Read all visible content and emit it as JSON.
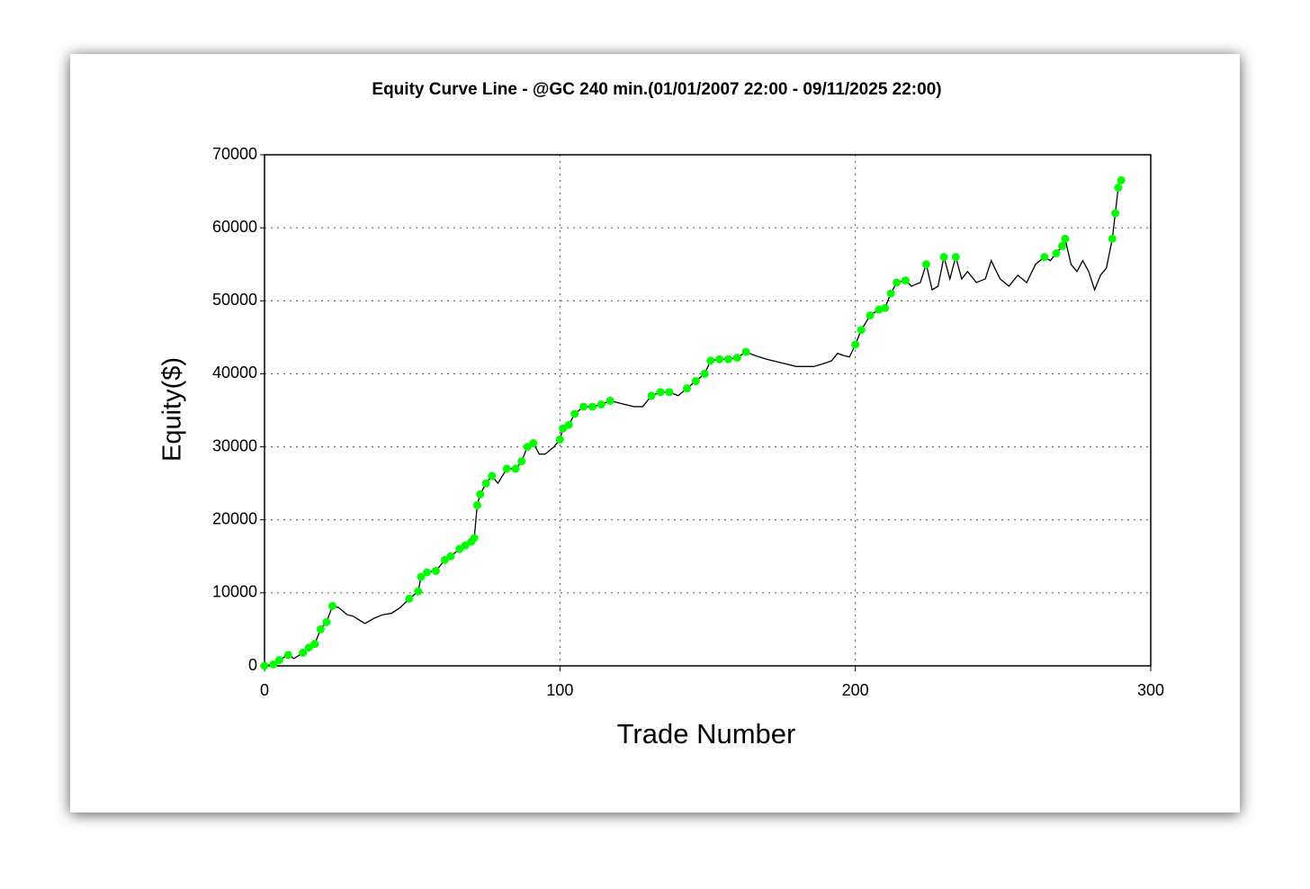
{
  "chart_data": {
    "type": "line",
    "title": "Equity Curve Line - @GC 240 min.(01/01/2007 22:00 - 09/11/2025 22:00)",
    "x_label": "Trade Number",
    "y_label": "Equity($)",
    "xlim": [
      0,
      300
    ],
    "xticks": [
      0,
      100,
      200,
      300
    ],
    "ylim": [
      0,
      70000
    ],
    "yticks": [
      0,
      10000,
      20000,
      30000,
      40000,
      50000,
      60000,
      70000
    ],
    "grid": true,
    "highlight_color": "#00ff00",
    "series": [
      {
        "color": "#000000",
        "x": [
          0,
          3,
          5,
          8,
          10,
          13,
          15,
          17,
          19,
          21,
          23,
          25,
          28,
          30,
          34,
          37,
          40,
          43,
          46,
          49,
          52,
          53,
          55,
          58,
          61,
          63,
          66,
          68,
          70,
          71,
          72,
          73,
          75,
          77,
          79,
          82,
          85,
          87,
          89,
          91,
          93,
          95,
          98,
          100,
          101,
          103,
          105,
          108,
          111,
          114,
          117,
          120,
          125,
          128,
          131,
          134,
          137,
          140,
          143,
          146,
          149,
          151,
          154,
          157,
          160,
          163,
          166,
          170,
          175,
          180,
          186,
          190,
          192,
          194,
          196,
          198,
          200,
          202,
          205,
          208,
          210,
          212,
          214,
          217,
          219,
          222,
          224,
          226,
          228,
          230,
          232,
          234,
          236,
          238,
          241,
          244,
          246,
          249,
          252,
          255,
          258,
          261,
          264,
          266,
          268,
          270,
          271,
          273,
          275,
          277,
          279,
          281,
          283,
          285,
          287,
          288,
          289,
          290
        ],
        "values": [
          0,
          200,
          800,
          1500,
          1000,
          1800,
          2500,
          3000,
          5000,
          6000,
          8200,
          8000,
          7000,
          6800,
          5800,
          6500,
          7000,
          7200,
          8000,
          9200,
          10200,
          12200,
          12800,
          13000,
          14500,
          15000,
          16000,
          16500,
          17000,
          17500,
          22000,
          23500,
          25000,
          26000,
          25000,
          27000,
          27000,
          28000,
          30000,
          30500,
          29000,
          29000,
          30000,
          31000,
          32500,
          33000,
          34500,
          35500,
          35500,
          35800,
          36300,
          36000,
          35500,
          35500,
          37000,
          37500,
          37500,
          37000,
          38000,
          39000,
          40000,
          41800,
          42000,
          42000,
          42200,
          43000,
          42500,
          42000,
          41500,
          41000,
          41000,
          41500,
          41800,
          42800,
          42500,
          42300,
          44000,
          46000,
          48000,
          48800,
          49000,
          51000,
          52500,
          52800,
          52000,
          52500,
          55000,
          51500,
          52000,
          56000,
          53000,
          56000,
          53000,
          54000,
          52500,
          53000,
          55500,
          53000,
          52000,
          53500,
          52500,
          55000,
          56000,
          55500,
          56500,
          57500,
          58500,
          55000,
          54000,
          55500,
          54000,
          51500,
          53500,
          54500,
          58500,
          62000,
          65500,
          66500
        ]
      }
    ]
  }
}
